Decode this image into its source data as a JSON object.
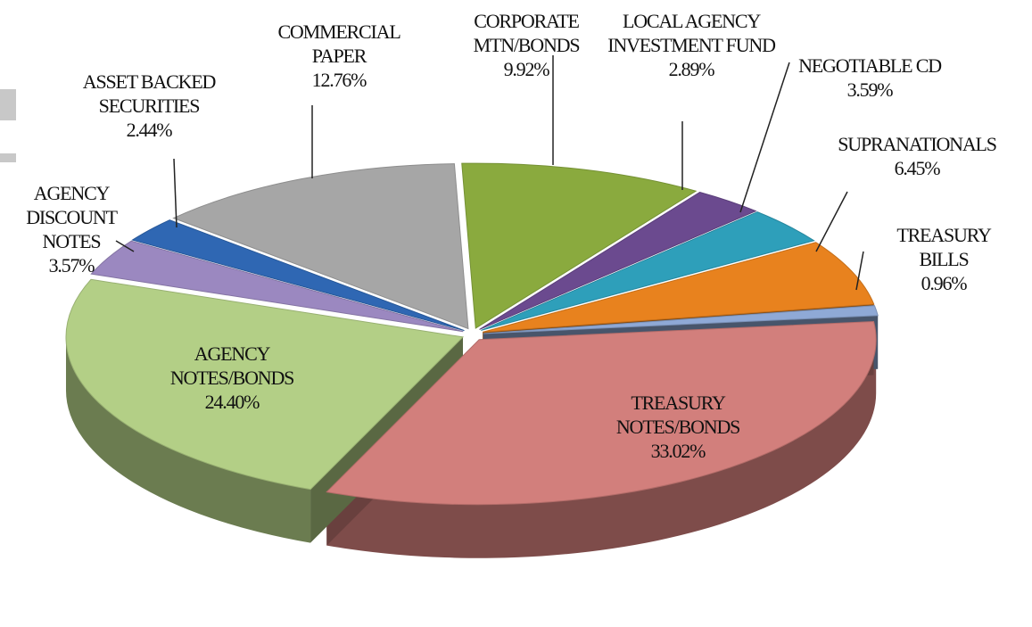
{
  "chart_data": {
    "type": "pie",
    "categories": [
      "CORPORATE MTN/BONDS",
      "LOCAL AGENCY INVESTMENT FUND",
      "NEGOTIABLE CD",
      "SUPRANATIONALS",
      "TREASURY BILLS",
      "TREASURY NOTES/BONDS",
      "AGENCY NOTES/BONDS",
      "AGENCY DISCOUNT NOTES",
      "ASSET BACKED SECURITIES",
      "COMMERCIAL PAPER"
    ],
    "values": [
      9.92,
      2.89,
      3.59,
      6.45,
      0.96,
      33.02,
      24.4,
      3.57,
      2.44,
      12.76
    ],
    "value_labels": [
      "9.92%",
      "2.89%",
      "3.59%",
      "6.45%",
      "0.96%",
      "33.02%",
      "24.40%",
      "3.57%",
      "2.44%",
      "12.76%"
    ],
    "colors": [
      "#8aaa3e",
      "#6b4a8f",
      "#2e9fba",
      "#e8821e",
      "#8fa9d6",
      "#d27f7c",
      "#b3cf86",
      "#9b88c0",
      "#2f67b3",
      "#a6a6a6"
    ]
  }
}
